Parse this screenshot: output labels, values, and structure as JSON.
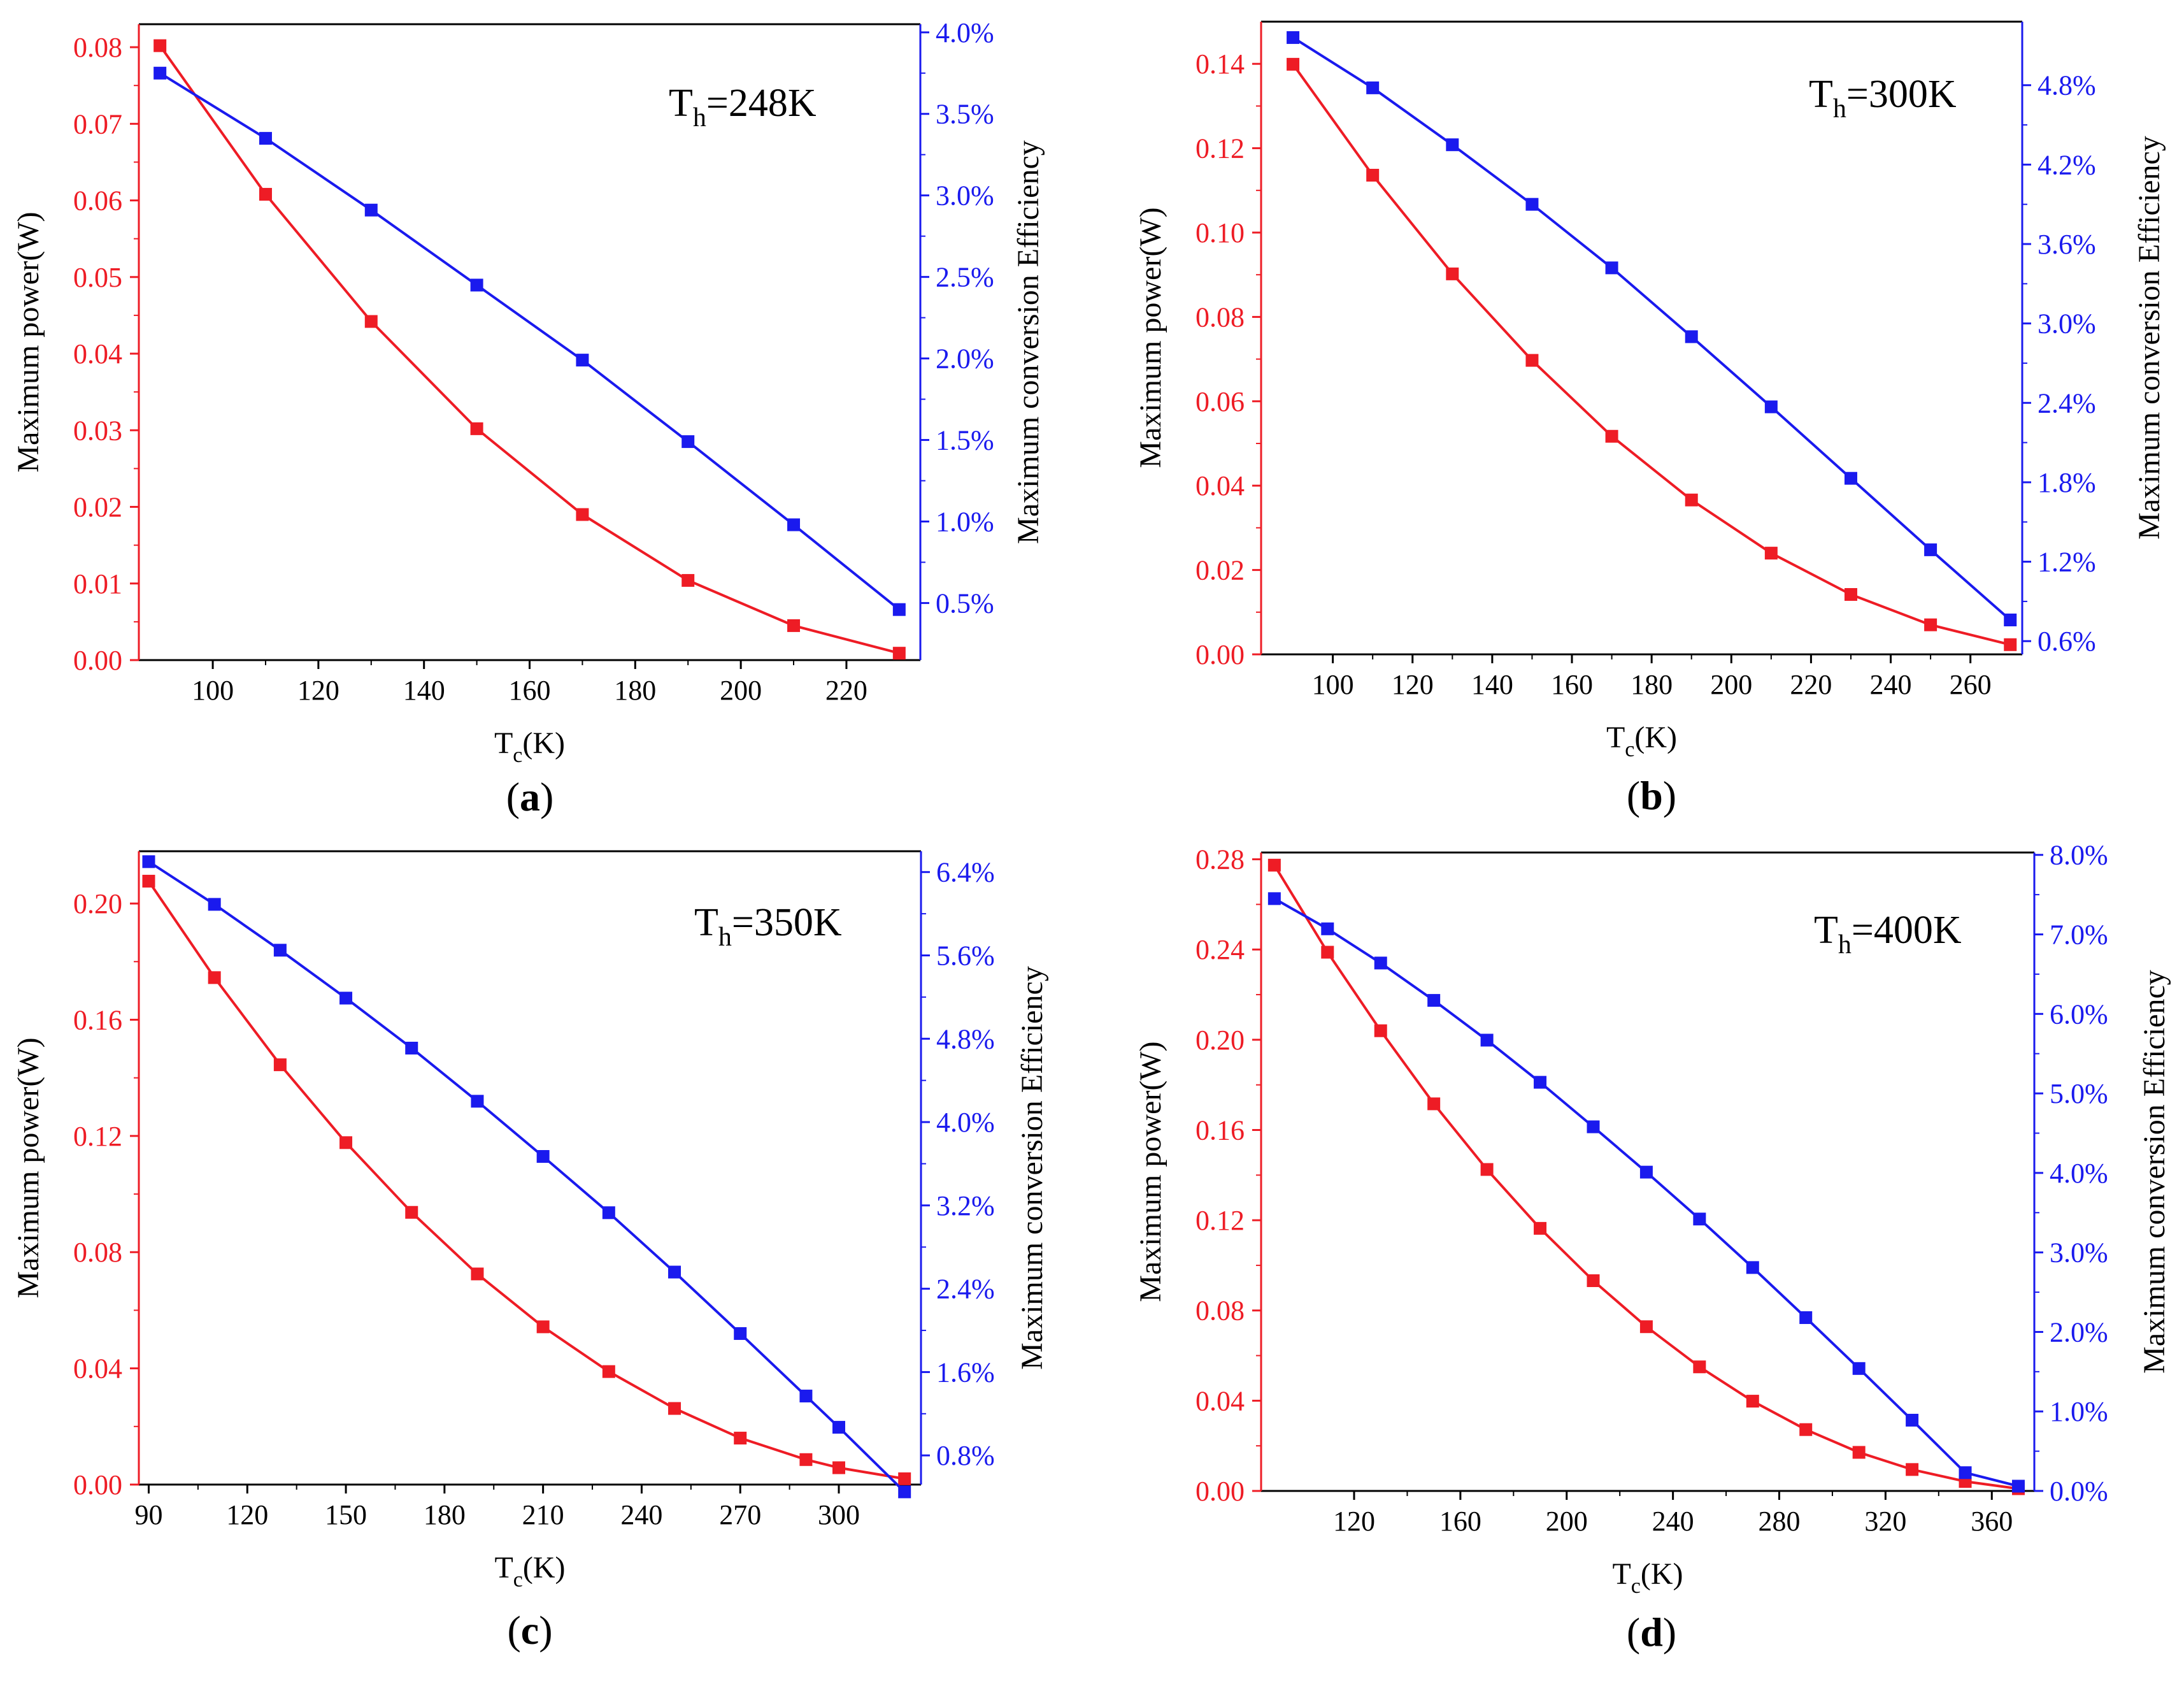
{
  "colors": {
    "power": "#ee1c25",
    "efficiency": "#1a1aee",
    "axis": "#000000"
  },
  "chart_data": [
    {
      "panel": "a",
      "type": "line",
      "caption": {
        "open": "(",
        "letter": "a",
        "close": ")"
      },
      "annotation": {
        "prefix": "T",
        "sub": "h",
        "suffix": "=248K"
      },
      "xlabel": {
        "main": "T",
        "sub": "c",
        "tail": "(K)"
      },
      "ylabel": "Maximum power(W)",
      "y2label": "Maximum conversion Efficiency",
      "xlim": [
        86,
        234
      ],
      "ylim": [
        0,
        0.083
      ],
      "y2lim": [
        0.0015,
        0.0405
      ],
      "xticks": [
        100,
        120,
        140,
        160,
        180,
        200,
        220
      ],
      "yticks": [
        0.0,
        0.01,
        0.02,
        0.03,
        0.04,
        0.05,
        0.06,
        0.07,
        0.08
      ],
      "ytick_labels": [
        "0.00",
        "0.01",
        "0.02",
        "0.03",
        "0.04",
        "0.05",
        "0.06",
        "0.07",
        "0.08"
      ],
      "y2ticks": [
        0.005,
        0.01,
        0.015,
        0.02,
        0.025,
        0.03,
        0.035,
        0.04
      ],
      "y2tick_labels": [
        "0.5%",
        "1.0%",
        "1.5%",
        "2.0%",
        "2.5%",
        "3.0%",
        "3.5%",
        "4.0%"
      ],
      "x": [
        90,
        110,
        130,
        150,
        170,
        190,
        210,
        230
      ],
      "series": [
        {
          "name": "Maximum power",
          "axis": "left",
          "values": [
            0.0802,
            0.0608,
            0.0442,
            0.0302,
            0.019,
            0.0104,
            0.0045,
            0.0009
          ]
        },
        {
          "name": "Maximum conversion efficiency",
          "axis": "right",
          "values": [
            0.0375,
            0.0335,
            0.0291,
            0.0245,
            0.0199,
            0.0149,
            0.0098,
            0.0046
          ]
        }
      ]
    },
    {
      "panel": "b",
      "type": "line",
      "caption": {
        "open": "(",
        "letter": "b",
        "close": ")"
      },
      "annotation": {
        "prefix": "T",
        "sub": "h",
        "suffix": "=300K"
      },
      "xlabel": {
        "main": "T",
        "sub": "c",
        "tail": "(K)"
      },
      "ylabel": "Maximum power(W)",
      "y2label": "Maximum conversion Efficiency",
      "xlim": [
        82,
        273
      ],
      "ylim": [
        0,
        0.15
      ],
      "y2lim": [
        0.005,
        0.0528
      ],
      "xticks": [
        100,
        120,
        140,
        160,
        180,
        200,
        220,
        240,
        260
      ],
      "yticks": [
        0.0,
        0.02,
        0.04,
        0.06,
        0.08,
        0.1,
        0.12,
        0.14
      ],
      "ytick_labels": [
        "0.00",
        "0.02",
        "0.04",
        "0.06",
        "0.08",
        "0.10",
        "0.12",
        "0.14"
      ],
      "y2ticks": [
        0.006,
        0.012,
        0.018,
        0.024,
        0.03,
        0.036,
        0.042,
        0.048
      ],
      "y2tick_labels": [
        "0.6%",
        "1.2%",
        "1.8%",
        "2.4%",
        "3.0%",
        "3.6%",
        "4.2%",
        "4.8%"
      ],
      "x": [
        90,
        110,
        130,
        150,
        170,
        190,
        210,
        230,
        250,
        270
      ],
      "series": [
        {
          "name": "Maximum power",
          "axis": "left",
          "values": [
            0.1399,
            0.1136,
            0.0902,
            0.0697,
            0.0517,
            0.0366,
            0.024,
            0.0142,
            0.007,
            0.0023
          ]
        },
        {
          "name": "Maximum conversion efficiency",
          "axis": "right",
          "values": [
            0.0516,
            0.0478,
            0.0435,
            0.039,
            0.0342,
            0.029,
            0.0237,
            0.0183,
            0.0129,
            0.0076
          ]
        }
      ]
    },
    {
      "panel": "c",
      "type": "line",
      "caption": {
        "open": "(",
        "letter": "c",
        "close": ")"
      },
      "annotation": {
        "prefix": "T",
        "sub": "h",
        "suffix": "=350K"
      },
      "xlabel": {
        "main": "T",
        "sub": "c",
        "tail": "(K)"
      },
      "ylabel": "Maximum power(W)",
      "y2label": "Maximum conversion Efficiency",
      "xlim": [
        87,
        325
      ],
      "ylim": [
        0,
        0.218
      ],
      "y2lim": [
        0.0052,
        0.066
      ],
      "xticks": [
        90,
        120,
        150,
        180,
        210,
        240,
        270,
        300
      ],
      "yticks": [
        0.0,
        0.04,
        0.08,
        0.12,
        0.16,
        0.2
      ],
      "ytick_labels": [
        "0.00",
        "0.04",
        "0.08",
        "0.12",
        "0.16",
        "0.20"
      ],
      "y2ticks": [
        0.008,
        0.016,
        0.024,
        0.032,
        0.04,
        0.048,
        0.056,
        0.064
      ],
      "y2tick_labels": [
        "0.8%",
        "1.6%",
        "2.4%",
        "3.2%",
        "4.0%",
        "4.8%",
        "5.6%",
        "6.4%"
      ],
      "x": [
        90,
        110,
        130,
        150,
        170,
        190,
        210,
        230,
        250,
        270,
        290,
        300,
        320
      ],
      "series": [
        {
          "name": "Maximum power",
          "axis": "left",
          "values": [
            0.2077,
            0.1745,
            0.1445,
            0.1177,
            0.0937,
            0.0725,
            0.0543,
            0.0389,
            0.0262,
            0.016,
            0.0086,
            0.0058,
            0.002
          ]
        },
        {
          "name": "Maximum conversion efficiency",
          "axis": "right",
          "values": [
            0.065,
            0.0609,
            0.0565,
            0.0519,
            0.0471,
            0.042,
            0.0367,
            0.0313,
            0.0256,
            0.0197,
            0.0137,
            0.0107,
            0.0045
          ]
        }
      ]
    },
    {
      "panel": "d",
      "type": "line",
      "caption": {
        "open": "(",
        "letter": "d",
        "close": ")"
      },
      "annotation": {
        "prefix": "T",
        "sub": "h",
        "suffix": "=400K"
      },
      "xlabel": {
        "main": "T",
        "sub": "c",
        "tail": "(K)"
      },
      "ylabel": "Maximum power(W)",
      "y2label": "Maximum conversion Efficiency",
      "xlim": [
        85,
        376
      ],
      "ylim": [
        0,
        0.283
      ],
      "y2lim": [
        0,
        0.0803
      ],
      "xticks": [
        120,
        160,
        200,
        240,
        280,
        320,
        360
      ],
      "yticks": [
        0.0,
        0.04,
        0.08,
        0.12,
        0.16,
        0.2,
        0.24,
        0.28
      ],
      "ytick_labels": [
        "0.00",
        "0.04",
        "0.08",
        "0.12",
        "0.16",
        "0.20",
        "0.24",
        "0.28"
      ],
      "y2ticks": [
        0.0,
        0.01,
        0.02,
        0.03,
        0.04,
        0.05,
        0.06,
        0.07,
        0.08
      ],
      "y2tick_labels": [
        "0.0%",
        "1.0%",
        "2.0%",
        "3.0%",
        "4.0%",
        "5.0%",
        "6.0%",
        "7.0%",
        "8.0%"
      ],
      "x": [
        90,
        110,
        130,
        150,
        170,
        190,
        210,
        230,
        250,
        270,
        290,
        310,
        330,
        350,
        370
      ],
      "series": [
        {
          "name": "Maximum power",
          "axis": "left",
          "values": [
            0.2774,
            0.2388,
            0.204,
            0.1716,
            0.1425,
            0.1164,
            0.0932,
            0.0728,
            0.055,
            0.0398,
            0.0272,
            0.0171,
            0.0095,
            0.0042,
            0.001
          ]
        },
        {
          "name": "Maximum conversion efficiency",
          "axis": "right",
          "values": [
            0.0745,
            0.0707,
            0.0664,
            0.0617,
            0.0567,
            0.0514,
            0.0458,
            0.0401,
            0.0342,
            0.0281,
            0.0218,
            0.0154,
            0.0089,
            0.0023,
            0.0006
          ]
        }
      ]
    }
  ]
}
